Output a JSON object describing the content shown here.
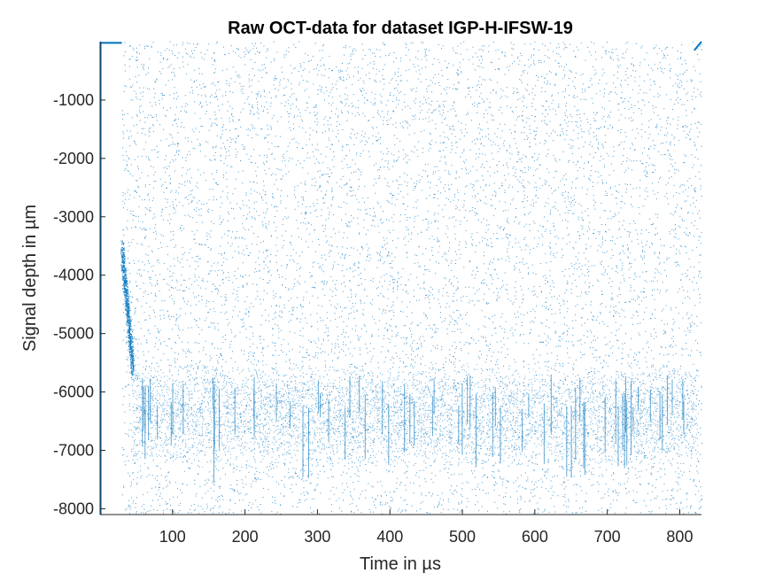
{
  "colors": {
    "series": "#0072BD",
    "axis": "#262626",
    "background": "#ffffff"
  },
  "chart_data": {
    "type": "scatter",
    "title": "Raw OCT-data for dataset IGP-H-IFSW-19",
    "xlabel": "Time in µs",
    "ylabel": "Signal depth in µm",
    "xlim": [
      0,
      830
    ],
    "ylim": [
      -8100,
      0
    ],
    "xticks": [
      100,
      200,
      300,
      400,
      500,
      600,
      700,
      800
    ],
    "yticks": [
      -8000,
      -7000,
      -6000,
      -5000,
      -4000,
      -3000,
      -2000,
      -1000
    ],
    "xtick_labels": [
      "100",
      "200",
      "300",
      "400",
      "500",
      "600",
      "700",
      "800"
    ],
    "ytick_labels": [
      "-8000",
      "-7000",
      "-6000",
      "-5000",
      "-4000",
      "-3000",
      "-2000",
      "-1000"
    ],
    "grid": false,
    "legend": "none",
    "features": {
      "surface_line": {
        "x": [
          0,
          30
        ],
        "y": -20
      },
      "initial_surface_segment": {
        "x": [
          0,
          3
        ],
        "y": [
          0,
          -8100
        ]
      },
      "keyhole_drop": {
        "x": [
          30,
          45
        ],
        "y_start": -3600,
        "y_end": -5600
      },
      "keyhole_front_band": {
        "y": [
          -7000,
          -5800
        ]
      },
      "noise_field": {
        "x": [
          30,
          830
        ],
        "y": [
          -8100,
          0
        ]
      },
      "end_surface_line": {
        "x": [
          820,
          830
        ],
        "y": [
          -150,
          0
        ]
      }
    }
  }
}
